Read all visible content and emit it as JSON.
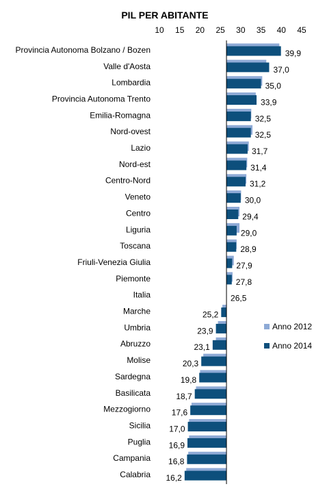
{
  "chart_data": {
    "type": "bar",
    "orientation": "horizontal",
    "title": "PIL PER ABITANTE",
    "xlim": [
      10,
      45
    ],
    "xticks": [
      10,
      15,
      20,
      25,
      30,
      35,
      40,
      45
    ],
    "x_axis_position": "top",
    "baseline": 26.5,
    "grid": false,
    "legend_position": "right",
    "colors": {
      "Anno 2012": "#8EAAD6",
      "Anno 2014": "#0D4F7C"
    },
    "categories": [
      "Provincia Autonoma Bolzano / Bozen",
      "Valle d'Aosta",
      "Lombardia",
      "Provincia Autonoma Trento",
      "Emilia-Romagna",
      "Nord-ovest",
      "Lazio",
      "Nord-est",
      "Centro-Nord",
      "Veneto",
      "Centro",
      "Liguria",
      "Toscana",
      "Friuli-Venezia Giulia",
      "Piemonte",
      "Italia",
      "Marche",
      "Umbria",
      "Abruzzo",
      "Molise",
      "Sardegna",
      "Basilicata",
      "Mezzogiorno",
      "Sicilia",
      "Puglia",
      "Campania",
      "Calabria"
    ],
    "series": [
      {
        "name": "Anno 2012",
        "values": [
          39.5,
          36.3,
          35.3,
          33.7,
          32.6,
          32.9,
          32.0,
          31.6,
          31.4,
          30.1,
          29.7,
          29.7,
          29.0,
          28.3,
          28.0,
          26.5,
          25.5,
          24.4,
          23.9,
          20.8,
          20.0,
          19.0,
          17.9,
          17.3,
          17.3,
          17.1,
          16.6
        ]
      },
      {
        "name": "Anno 2014",
        "values": [
          39.9,
          37.0,
          35.0,
          33.9,
          32.5,
          32.5,
          31.7,
          31.4,
          31.2,
          30.0,
          29.4,
          29.0,
          28.9,
          27.9,
          27.8,
          26.5,
          25.2,
          23.9,
          23.1,
          20.3,
          19.8,
          18.7,
          17.6,
          17.0,
          16.9,
          16.8,
          16.2
        ]
      }
    ],
    "labels": [
      "39,9",
      "37,0",
      "35,0",
      "33,9",
      "32,5",
      "32,5",
      "31,7",
      "31,4",
      "31,2",
      "30,0",
      "29,4",
      "29,0",
      "28,9",
      "27,9",
      "27,8",
      "26,5",
      "25,2",
      "23,9",
      "23,1",
      "20,3",
      "19,8",
      "18,7",
      "17,6",
      "17,0",
      "16,9",
      "16,8",
      "16,2"
    ]
  }
}
